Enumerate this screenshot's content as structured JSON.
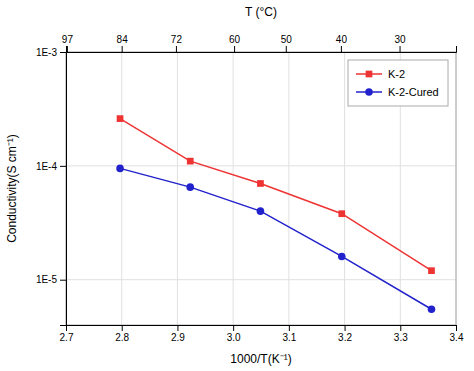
{
  "chart_data": {
    "type": "line",
    "xlabel": "1000/T(K⁻¹)",
    "x2label": "T (°C)",
    "ylabel": "Conductivity(S cm⁻¹)",
    "x": [
      2.797,
      2.923,
      3.049,
      3.195,
      3.356
    ],
    "series": [
      {
        "name": "K-2",
        "color": "#ee3333",
        "marker": "square",
        "line_style": "solid",
        "values": [
          0.00026,
          0.00011,
          7e-05,
          3.8e-05,
          1.2e-05
        ]
      },
      {
        "name": "K-2-Cured",
        "color": "#2222cc",
        "marker": "circle",
        "line_style": "solid",
        "values": [
          9.5e-05,
          6.5e-05,
          4e-05,
          1.6e-05,
          5.5e-06
        ]
      }
    ],
    "xlim": [
      2.7,
      3.4
    ],
    "xticks": [
      2.7,
      2.8,
      2.9,
      {
        "value": 3.0,
        "label": "3.0"
      },
      3.1,
      3.2,
      3.3,
      3.4
    ],
    "x2ticks": [
      {
        "value": 2.7016,
        "label": "97"
      },
      {
        "value": 2.7999,
        "label": "84"
      },
      {
        "value": 2.8973,
        "label": "72"
      },
      {
        "value": 3.0017,
        "label": "60"
      },
      {
        "value": 3.0945,
        "label": "50"
      },
      {
        "value": 3.1934,
        "label": "40"
      },
      {
        "value": 3.2987,
        "label": "30"
      }
    ],
    "ylim": [
      4e-06,
      0.001
    ],
    "yticks": [
      {
        "value": 1e-05,
        "label": "1E-5"
      },
      {
        "value": 0.0001,
        "label": "1E-4"
      },
      {
        "value": 0.001,
        "label": "1E-3"
      }
    ],
    "log": "y",
    "grid": true,
    "legend": "upper right"
  }
}
